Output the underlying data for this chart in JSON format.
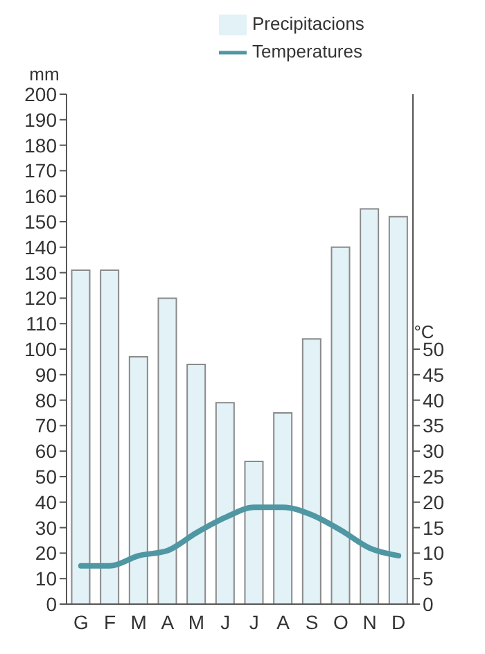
{
  "chart_data": {
    "type": "bar",
    "categories": [
      "G",
      "F",
      "M",
      "A",
      "M",
      "J",
      "J",
      "A",
      "S",
      "O",
      "N",
      "D"
    ],
    "ylabel": "mm",
    "y2label": "°C",
    "series": [
      {
        "name": "Precipitacions",
        "color": "#e2f2f7",
        "values": [
          131,
          131,
          97,
          120,
          94,
          79,
          56,
          75,
          104,
          140,
          155,
          152
        ]
      },
      {
        "name": "Temperatures",
        "type": "line",
        "axis": "y2",
        "color": "#4f97a3",
        "values": [
          7.5,
          7.5,
          9.5,
          10.5,
          14,
          17,
          19,
          19,
          17.5,
          14.5,
          11,
          9.5
        ]
      }
    ],
    "ylim": [
      0,
      200
    ],
    "yticks": [
      0,
      10,
      20,
      30,
      40,
      50,
      60,
      70,
      80,
      90,
      100,
      110,
      120,
      130,
      140,
      150,
      160,
      170,
      180,
      190,
      200
    ],
    "y2lim": [
      0,
      100
    ],
    "y2ticks": [
      0,
      5,
      10,
      15,
      20,
      25,
      30,
      35,
      40,
      45,
      50
    ],
    "grid": false,
    "legend": "top",
    "marker": "none",
    "line_style": "solid"
  }
}
